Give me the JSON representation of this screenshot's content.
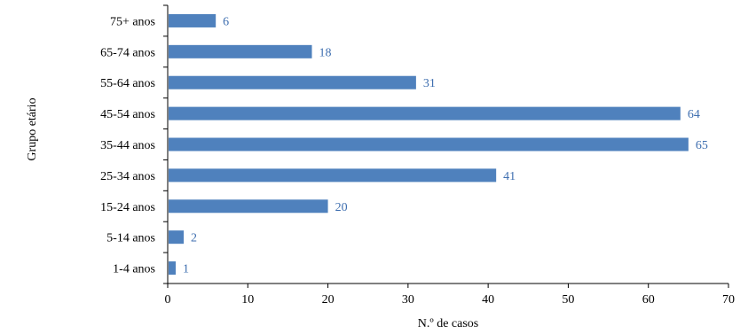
{
  "chart_data": {
    "type": "bar",
    "orientation": "horizontal",
    "categories": [
      "1-4 anos",
      "5-14 anos",
      "15-24 anos",
      "25-34 anos",
      "35-44 anos",
      "45-54 anos",
      "55-64 anos",
      "65-74 anos",
      "75+ anos"
    ],
    "values": [
      1,
      2,
      20,
      41,
      65,
      64,
      31,
      18,
      6
    ],
    "title": "",
    "xlabel": "N.º de casos",
    "ylabel": "Grupo etário",
    "xlim": [
      0,
      70
    ],
    "xticks": [
      0,
      10,
      20,
      30,
      40,
      50,
      60,
      70
    ],
    "grid": false,
    "legend": "none",
    "bar_color": "#4f81bd",
    "data_label_color": "#3f6fb0",
    "axis_color": "#000000"
  }
}
